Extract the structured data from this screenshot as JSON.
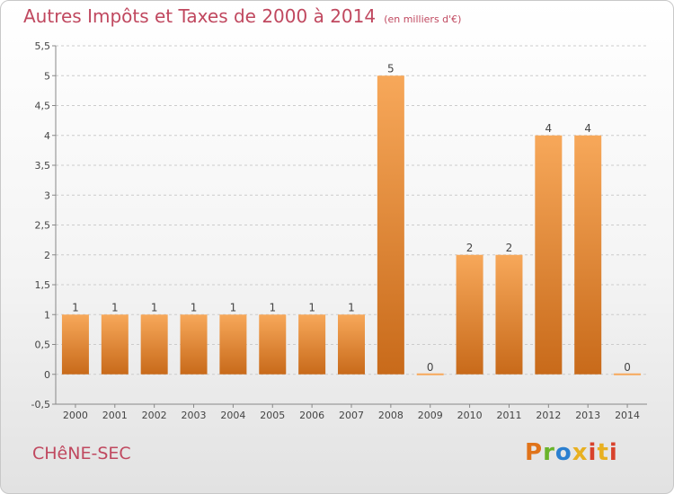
{
  "header": {
    "title": "Autres Impôts et Taxes de 2000 à 2014",
    "unit": "(en milliers d'€)"
  },
  "commune": "CHêNE-SEC",
  "logo": {
    "letters": [
      "P",
      "r",
      "o",
      "x",
      "i",
      "t",
      "i"
    ]
  },
  "colors": {
    "title": "#c0485f",
    "bar_light": "#f7a85a",
    "bar_dark": "#c86a1a",
    "grid": "#cccccc"
  },
  "chart_data": {
    "type": "bar",
    "title": "Autres Impôts et Taxes de 2000 à 2014",
    "ylabel": "",
    "xlabel": "",
    "categories": [
      "2000",
      "2001",
      "2002",
      "2003",
      "2004",
      "2005",
      "2006",
      "2007",
      "2008",
      "2009",
      "2010",
      "2011",
      "2012",
      "2013",
      "2014"
    ],
    "values": [
      1,
      1,
      1,
      1,
      1,
      1,
      1,
      1,
      5,
      0,
      2,
      2,
      4,
      4,
      0
    ],
    "data_labels": [
      "1",
      "1",
      "1",
      "1",
      "1",
      "1",
      "1",
      "1",
      "5",
      "0",
      "2",
      "2",
      "4",
      "4",
      "0"
    ],
    "ylim": [
      -0.5,
      5.5
    ],
    "yticks": [
      -0.5,
      0,
      0.5,
      1,
      1.5,
      2,
      2.5,
      3,
      3.5,
      4,
      4.5,
      5,
      5.5
    ],
    "ytick_labels": [
      "-0,5",
      "0",
      "0,5",
      "1",
      "1,5",
      "2",
      "2,5",
      "3",
      "3,5",
      "4",
      "4,5",
      "5",
      "5,5"
    ],
    "grid": "horizontal dashed"
  }
}
